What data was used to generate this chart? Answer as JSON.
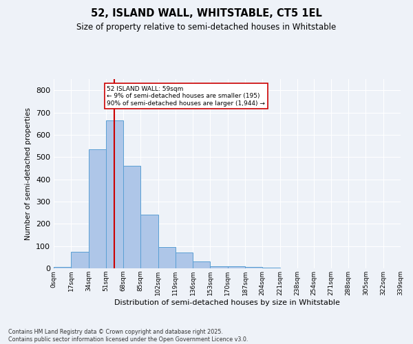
{
  "title": "52, ISLAND WALL, WHITSTABLE, CT5 1EL",
  "subtitle": "Size of property relative to semi-detached houses in Whitstable",
  "xlabel": "Distribution of semi-detached houses by size in Whitstable",
  "ylabel": "Number of semi-detached properties",
  "bin_edges": [
    0,
    17,
    34,
    51,
    68,
    85,
    102,
    119,
    136,
    153,
    170,
    187,
    204,
    221,
    238,
    254,
    271,
    288,
    305,
    322,
    339
  ],
  "bar_heights": [
    5,
    75,
    535,
    665,
    460,
    240,
    95,
    70,
    30,
    10,
    10,
    5,
    2,
    0,
    0,
    0,
    0,
    0,
    0,
    0
  ],
  "bar_color": "#aec6e8",
  "bar_edge_color": "#5a9fd4",
  "property_size": 59,
  "vline_color": "#cc0000",
  "annotation_text": "52 ISLAND WALL: 59sqm\n← 9% of semi-detached houses are smaller (195)\n90% of semi-detached houses are larger (1,944) →",
  "annotation_box_color": "#ffffff",
  "annotation_box_edge_color": "#cc0000",
  "ylim": [
    0,
    850
  ],
  "yticks": [
    0,
    100,
    200,
    300,
    400,
    500,
    600,
    700,
    800
  ],
  "tick_labels": [
    "0sqm",
    "17sqm",
    "34sqm",
    "51sqm",
    "68sqm",
    "85sqm",
    "102sqm",
    "119sqm",
    "136sqm",
    "153sqm",
    "170sqm",
    "187sqm",
    "204sqm",
    "221sqm",
    "238sqm",
    "254sqm",
    "271sqm",
    "288sqm",
    "305sqm",
    "322sqm",
    "339sqm"
  ],
  "footer_text": "Contains HM Land Registry data © Crown copyright and database right 2025.\nContains public sector information licensed under the Open Government Licence v3.0.",
  "background_color": "#eef2f8",
  "grid_color": "#ffffff",
  "figsize": [
    6.0,
    5.0
  ],
  "dpi": 100
}
